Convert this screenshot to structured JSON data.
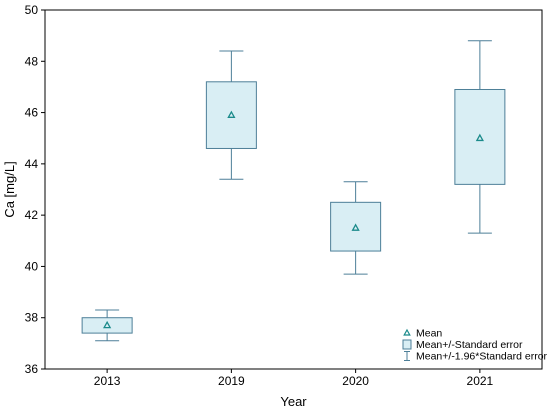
{
  "chart_data": {
    "type": "box",
    "xlabel": "Year",
    "ylabel": "Ca [mg/L]",
    "ylim": [
      36,
      50
    ],
    "yticks": [
      36,
      38,
      40,
      42,
      44,
      46,
      48,
      50
    ],
    "grid": false,
    "legend_position": "bottom-right",
    "categories": [
      "2013",
      "2019",
      "2020",
      "2021"
    ],
    "series": [
      {
        "category": "2013",
        "mean": 37.7,
        "se_low": 37.4,
        "se_high": 38.0,
        "ci_low": 37.1,
        "ci_high": 38.3
      },
      {
        "category": "2019",
        "mean": 45.9,
        "se_low": 44.6,
        "se_high": 47.2,
        "ci_low": 43.4,
        "ci_high": 48.4
      },
      {
        "category": "2020",
        "mean": 41.5,
        "se_low": 40.6,
        "se_high": 42.5,
        "ci_low": 39.7,
        "ci_high": 43.3
      },
      {
        "category": "2021",
        "mean": 45.0,
        "se_low": 43.2,
        "se_high": 46.9,
        "ci_low": 41.3,
        "ci_high": 48.8
      }
    ],
    "legend": [
      {
        "symbol": "mean-marker",
        "label": "Mean"
      },
      {
        "symbol": "box",
        "label": "Mean+/-Standard error"
      },
      {
        "symbol": "whisker",
        "label": "Mean+/-1.96*Standard error"
      }
    ],
    "colors": {
      "box_fill": "#d9eef4",
      "box_stroke": "#4d7f98",
      "mean_marker": "#1a8a8a",
      "axis": "#000000"
    }
  }
}
